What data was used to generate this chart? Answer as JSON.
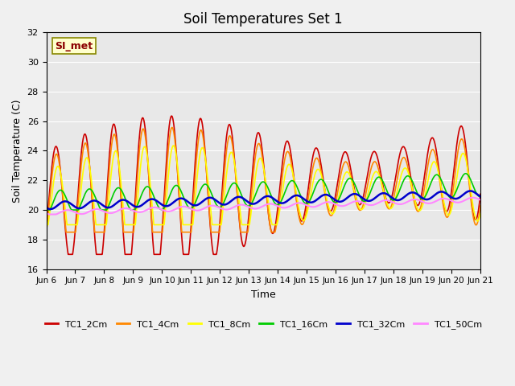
{
  "title": "Soil Temperatures Set 1",
  "xlabel": "Time",
  "ylabel": "Soil Temperature (C)",
  "ylim": [
    16,
    32
  ],
  "xlim": [
    0,
    15
  ],
  "annotation": "SI_met",
  "background_color": "#e8e8e8",
  "tick_labels": [
    "Jun 6",
    "Jun 7",
    "Jun 8",
    "Jun 9",
    "Jun 10",
    "Jun 11",
    "Jun 12",
    "Jun 13",
    "Jun 14",
    "Jun 15",
    "Jun 16",
    "Jun 17",
    "Jun 18",
    "Jun 19",
    "Jun 20",
    "Jun 21"
  ],
  "series_names": [
    "TC1_2Cm",
    "TC1_4Cm",
    "TC1_8Cm",
    "TC1_16Cm",
    "TC1_32Cm",
    "TC1_50Cm"
  ],
  "series_colors": [
    "#cc0000",
    "#ff8800",
    "#ffff00",
    "#00cc00",
    "#0000cc",
    "#ff88ff"
  ],
  "series_linewidths": [
    1.2,
    1.2,
    1.2,
    1.2,
    1.8,
    1.5
  ]
}
